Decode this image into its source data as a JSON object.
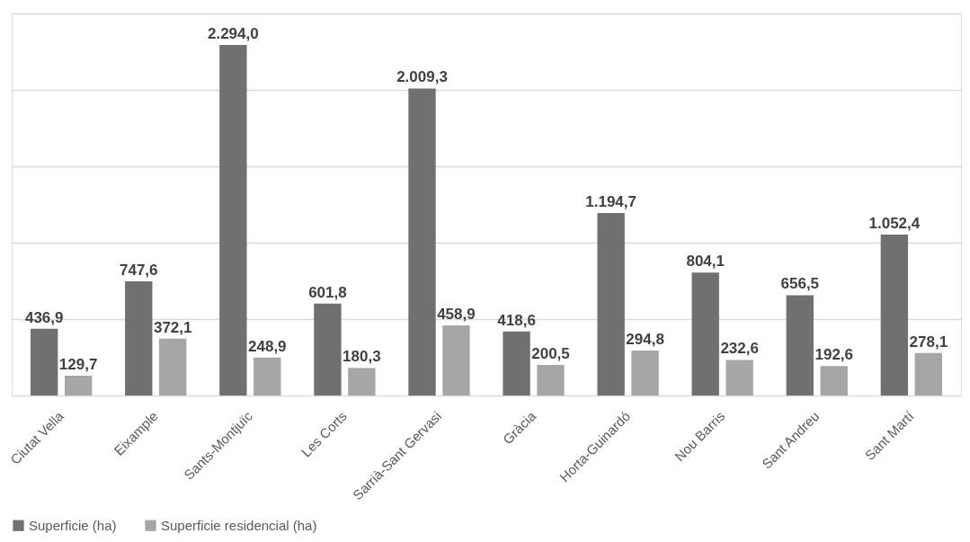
{
  "chart_data": {
    "type": "bar",
    "categories": [
      "Ciutat Vella",
      "Eixample",
      "Sants-Montjuïc",
      "Les Corts",
      "Sarrià-Sant Gervasi",
      "Gràcia",
      "Horta-Guinardó",
      "Nou Barris",
      "Sant Andreu",
      "Sant Martí"
    ],
    "series": [
      {
        "name": "Superficie (ha)",
        "color": "#707070",
        "values": [
          436.9,
          747.6,
          2294.0,
          601.8,
          2009.3,
          418.6,
          1194.7,
          804.1,
          656.5,
          1052.4
        ],
        "value_labels": [
          "436,9",
          "747,6",
          "2.294,0",
          "601,8",
          "2.009,3",
          "418,6",
          "1.194,7",
          "804,1",
          "656,5",
          "1.052,4"
        ]
      },
      {
        "name": "Superficie residencial (ha)",
        "color": "#a6a6a6",
        "values": [
          129.7,
          372.1,
          248.9,
          180.3,
          458.9,
          200.5,
          294.8,
          232.6,
          192.6,
          278.1
        ],
        "value_labels": [
          "129,7",
          "372,1",
          "248,9",
          "180,3",
          "458,9",
          "200,5",
          "294,8",
          "232,6",
          "192,6",
          "278,1"
        ]
      }
    ],
    "ylim": [
      0,
      2500
    ],
    "yticks": [
      {
        "value": 0,
        "label": null
      },
      {
        "value": 500,
        "label": null
      },
      {
        "value": 1000,
        "label": null
      },
      {
        "value": 1500,
        "label": null
      },
      {
        "value": 2000,
        "label": null
      },
      {
        "value": 2500,
        "label": null
      }
    ],
    "grid": "y",
    "legend": "bottom",
    "tick_labels": "x"
  }
}
